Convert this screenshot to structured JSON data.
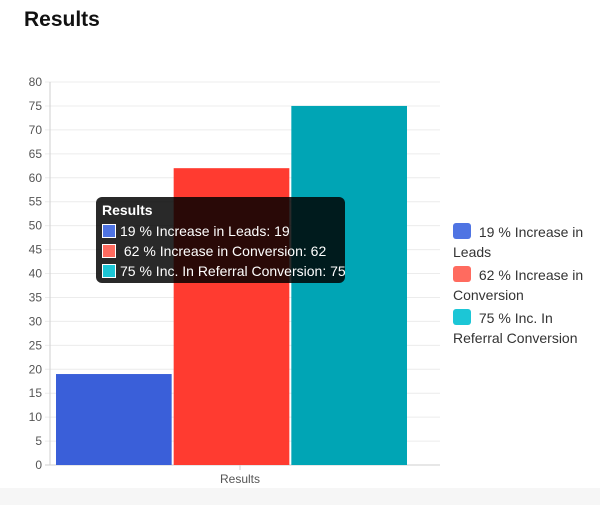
{
  "page": {
    "title": "Results"
  },
  "tooltip": {
    "title": "Results",
    "rows": [
      {
        "text": "19 % Increase in Leads: 19"
      },
      {
        "text": " 62 % Increase in Conversion: 62"
      },
      {
        "text": "75 % Inc. In Referral Conversion: 75"
      }
    ]
  },
  "legend": {
    "items": [
      {
        "label": " 19 % Increase in Leads"
      },
      {
        "label": " 62 % Increase in Conversion"
      },
      {
        "label": " 75 % Inc. In Referral Conversion"
      }
    ]
  },
  "chart_data": {
    "type": "bar",
    "categories": [
      "Results"
    ],
    "series": [
      {
        "name": " 19 % Increase in Leads",
        "values": [
          19
        ],
        "color": "#3a5fd9",
        "legend_color": "#4f74e3"
      },
      {
        "name": " 62 % Increase in Conversion",
        "values": [
          62
        ],
        "color": "#ff3b30",
        "legend_color": "#ff6b5f"
      },
      {
        "name": " 75 % Inc. In Referral Conversion",
        "values": [
          75
        ],
        "color": "#00a5b5",
        "legend_color": "#1cc6d6"
      }
    ],
    "title": "",
    "xlabel": "",
    "ylabel": "",
    "ylim": [
      0,
      80
    ],
    "yticks": [
      "0",
      "5",
      "10",
      "15",
      "20",
      "25",
      "30",
      "35",
      "40",
      "45",
      "50",
      "55",
      "60",
      "65",
      "70",
      "75",
      "80"
    ],
    "grid": true,
    "legend_position": "right"
  }
}
